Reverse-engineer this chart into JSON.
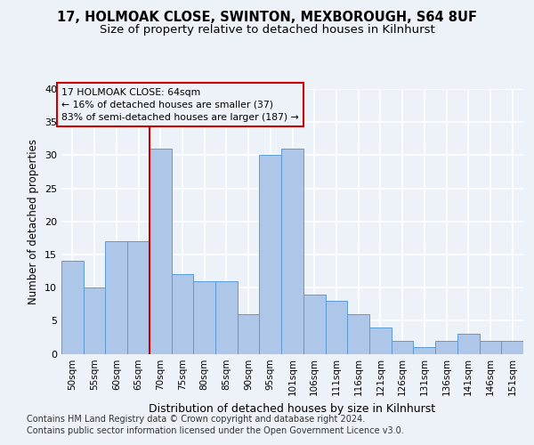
{
  "title1": "17, HOLMOAK CLOSE, SWINTON, MEXBOROUGH, S64 8UF",
  "title2": "Size of property relative to detached houses in Kilnhurst",
  "xlabel": "Distribution of detached houses by size in Kilnhurst",
  "ylabel": "Number of detached properties",
  "categories": [
    "50sqm",
    "55sqm",
    "60sqm",
    "65sqm",
    "70sqm",
    "75sqm",
    "80sqm",
    "85sqm",
    "90sqm",
    "95sqm",
    "101sqm",
    "106sqm",
    "111sqm",
    "116sqm",
    "121sqm",
    "126sqm",
    "131sqm",
    "136sqm",
    "141sqm",
    "146sqm",
    "151sqm"
  ],
  "values": [
    14,
    10,
    17,
    17,
    31,
    12,
    11,
    11,
    6,
    30,
    31,
    9,
    8,
    6,
    4,
    2,
    1,
    2,
    3,
    2,
    2
  ],
  "bar_color": "#aec6e8",
  "bar_edge_color": "#5b9bd5",
  "vline_x": 3.5,
  "vline_color": "#cc0000",
  "annotation_line1": "17 HOLMOAK CLOSE: 64sqm",
  "annotation_line2": "← 16% of detached houses are smaller (37)",
  "annotation_line3": "83% of semi-detached houses are larger (187) →",
  "ann_edge_color": "#cc0000",
  "ylim_max": 40,
  "yticks": [
    0,
    5,
    10,
    15,
    20,
    25,
    30,
    35,
    40
  ],
  "footnote1": "Contains HM Land Registry data © Crown copyright and database right 2024.",
  "footnote2": "Contains public sector information licensed under the Open Government Licence v3.0.",
  "bg_color": "#edf2f9",
  "grid_color": "#ffffff"
}
